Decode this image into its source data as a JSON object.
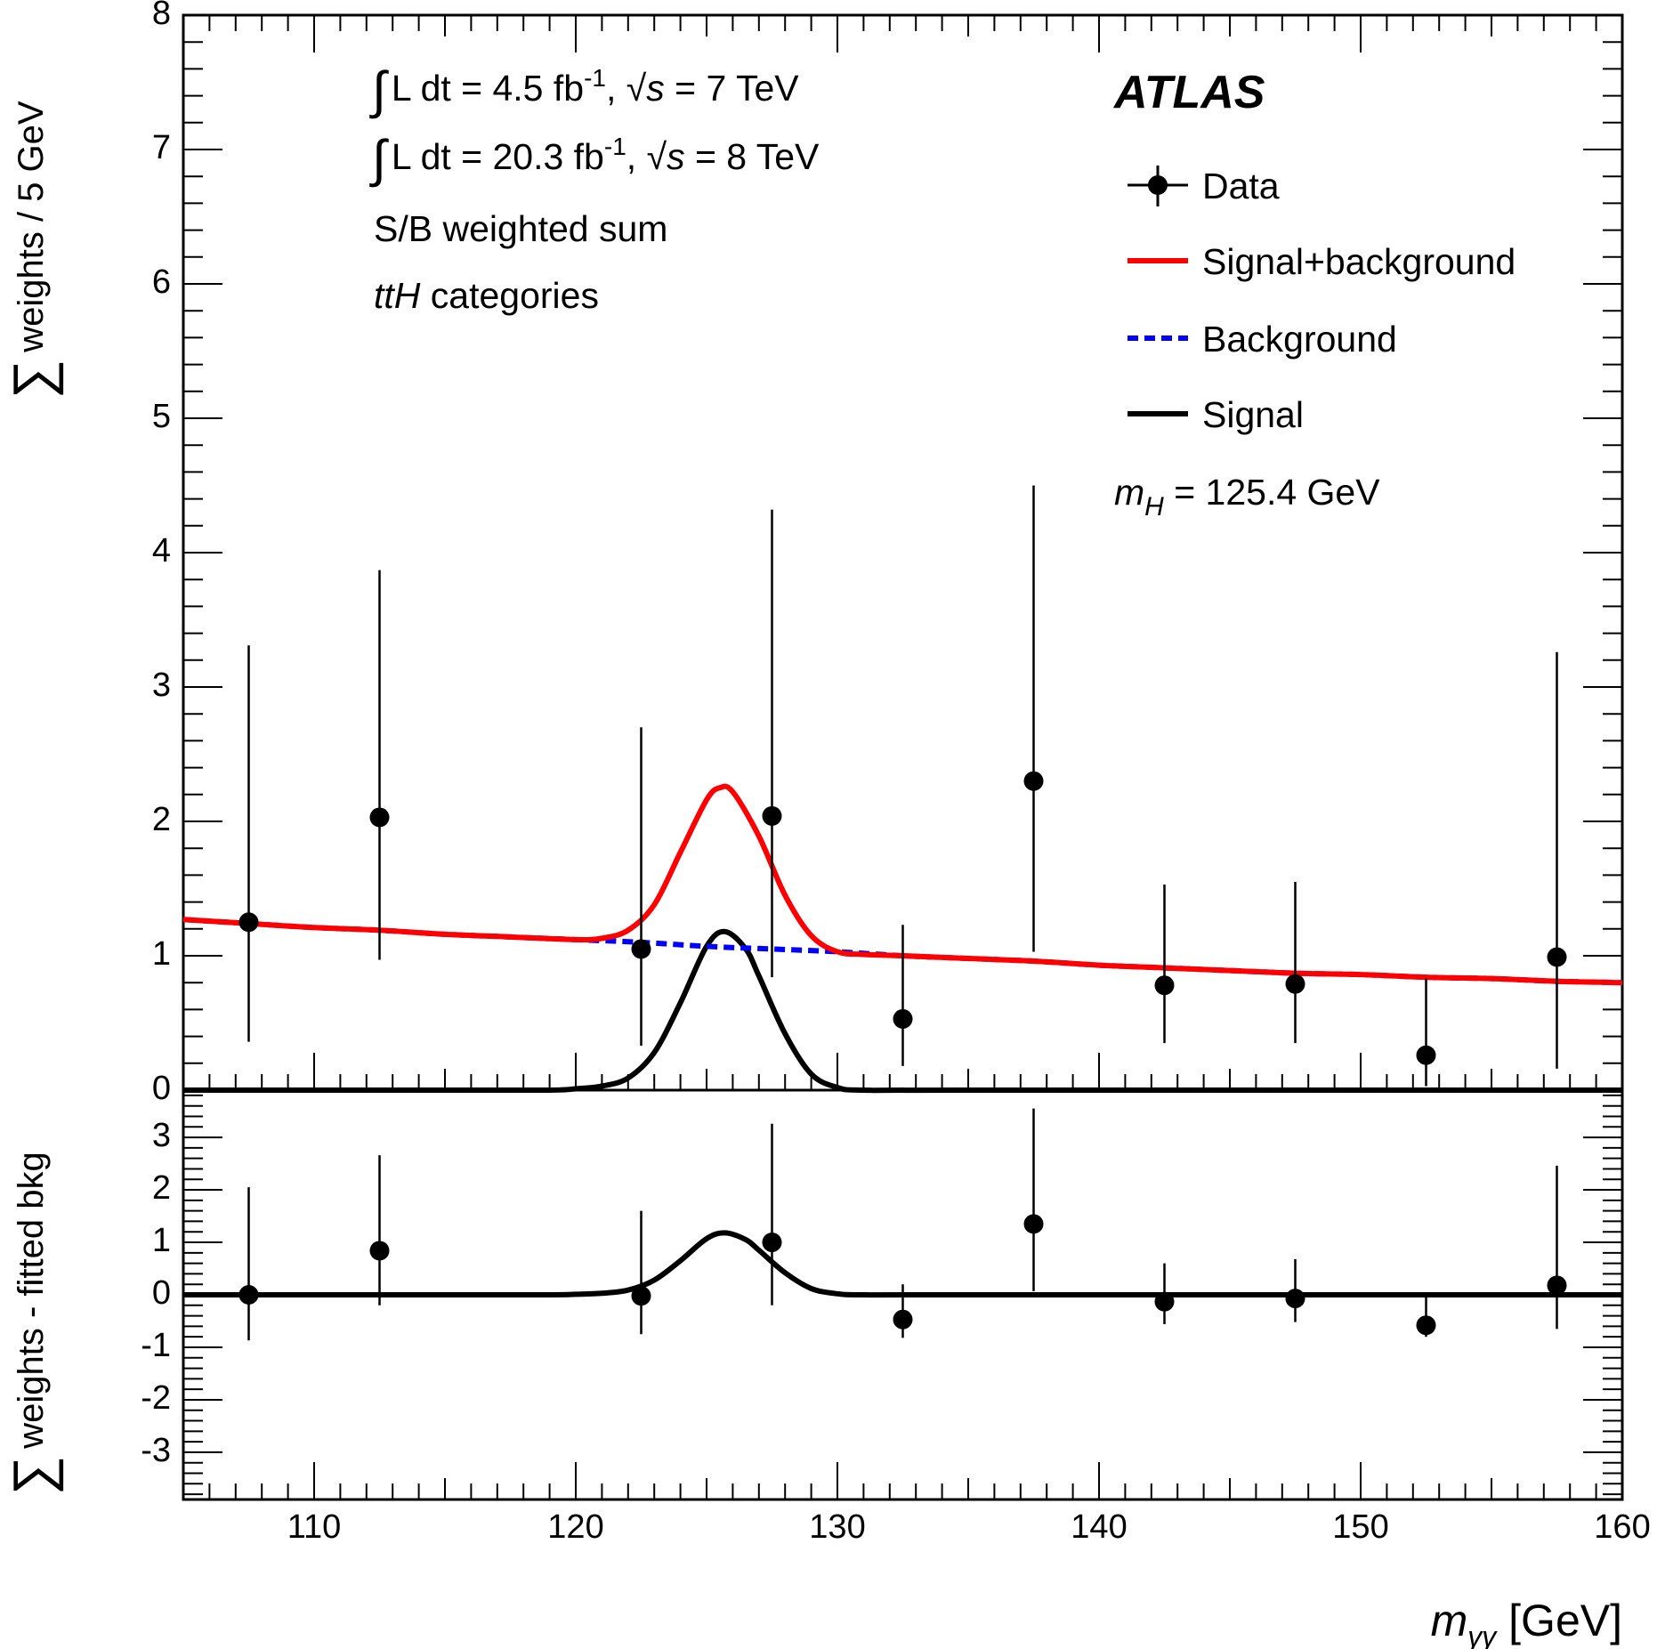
{
  "chart_data": [
    {
      "type": "scatter",
      "panel": "main",
      "ylabel": "weights / 5 GeV",
      "ylabel_symbol": "∑",
      "xlim": [
        105,
        160
      ],
      "ylim": [
        0,
        8
      ],
      "y_ticks": [
        "0",
        "1",
        "2",
        "3",
        "4",
        "5",
        "6",
        "7",
        "8"
      ],
      "annotations": {
        "lumi7": {
          "int": "∫",
          "pre": "L dt = 4.5 fb",
          "sup": "-1",
          "mid": ", √",
          "s": "s",
          "post": " = 7 TeV"
        },
        "lumi8": {
          "int": "∫",
          "pre": "L dt = 20.3 fb",
          "sup": "-1",
          "mid": ", √",
          "s": "s",
          "post": " = 8 TeV"
        },
        "line3": "S/B weighted sum",
        "line4_italic": "ttH",
        "line4_rest": " categories",
        "experiment": "ATLAS",
        "mass_symbol": "m",
        "mass_sub": "H",
        "mass_value": " = 125.4 GeV"
      },
      "legend": [
        {
          "label": "Data",
          "style": "marker"
        },
        {
          "label": "Signal+background",
          "style": "line",
          "color": "#ff0000"
        },
        {
          "label": "Background",
          "style": "dashed",
          "color": "#0000ff"
        },
        {
          "label": "Signal",
          "style": "line",
          "color": "#000000"
        }
      ],
      "legend_position": "top-right",
      "series": [
        {
          "name": "Data",
          "x": [
            107.5,
            112.5,
            122.5,
            127.5,
            132.5,
            137.5,
            142.5,
            147.5,
            152.5,
            157.5
          ],
          "y": [
            1.25,
            2.03,
            1.05,
            2.04,
            0.53,
            2.3,
            0.78,
            0.79,
            0.26,
            0.99
          ],
          "y_low": [
            0.36,
            0.97,
            0.33,
            0.84,
            0.18,
            1.03,
            0.35,
            0.35,
            0.03,
            0.16
          ],
          "y_high": [
            3.31,
            3.87,
            2.7,
            4.32,
            1.23,
            4.5,
            1.53,
            1.55,
            0.83,
            3.26
          ]
        },
        {
          "name": "Signal+background",
          "color": "#ff0000",
          "x": [
            105,
            107.5,
            110,
            112.5,
            115,
            117.5,
            120,
            121,
            122,
            123,
            124,
            125,
            125.5,
            126,
            127,
            128,
            129,
            130,
            131,
            132.5,
            135,
            137.5,
            140,
            142.5,
            145,
            147.5,
            150,
            152.5,
            155,
            157.5,
            160
          ],
          "y": [
            1.27,
            1.24,
            1.21,
            1.19,
            1.16,
            1.14,
            1.12,
            1.13,
            1.19,
            1.38,
            1.77,
            2.16,
            2.25,
            2.22,
            1.89,
            1.45,
            1.15,
            1.03,
            1.01,
            1.0,
            0.98,
            0.96,
            0.93,
            0.91,
            0.89,
            0.87,
            0.86,
            0.84,
            0.83,
            0.81,
            0.8
          ]
        },
        {
          "name": "Background",
          "color": "#0000ff",
          "x": [
            105,
            107.5,
            110,
            112.5,
            115,
            117.5,
            120,
            122.5,
            125,
            127.5,
            130,
            132.5,
            135,
            137.5,
            140,
            142.5,
            145,
            147.5,
            150,
            152.5,
            155,
            157.5,
            160
          ],
          "y": [
            1.27,
            1.24,
            1.21,
            1.19,
            1.16,
            1.14,
            1.12,
            1.1,
            1.07,
            1.05,
            1.03,
            1.0,
            0.98,
            0.96,
            0.93,
            0.91,
            0.89,
            0.87,
            0.86,
            0.84,
            0.83,
            0.81,
            0.8
          ]
        },
        {
          "name": "Signal",
          "color": "#000000",
          "x": [
            105,
            115,
            119,
            120,
            121,
            122,
            123,
            124,
            125,
            125.7,
            126.5,
            127,
            128,
            129,
            130,
            131,
            135,
            160
          ],
          "y": [
            0,
            0,
            0.0,
            0.01,
            0.03,
            0.09,
            0.28,
            0.65,
            1.07,
            1.18,
            1.05,
            0.85,
            0.42,
            0.12,
            0.02,
            0.0,
            0,
            0
          ]
        }
      ]
    },
    {
      "type": "scatter",
      "panel": "residual",
      "ylabel": "weights - fitted bkg",
      "ylabel_symbol": "∑",
      "xlabel_symbol": "m",
      "xlabel_sub": "γγ",
      "xlabel_unit": " [GeV]",
      "xlim": [
        105,
        160
      ],
      "ylim": [
        -3.9,
        3.9
      ],
      "x_ticks": [
        "110",
        "120",
        "130",
        "140",
        "150",
        "160"
      ],
      "y_ticks": [
        "-3",
        "-2",
        "-1",
        "0",
        "1",
        "2",
        "3"
      ],
      "series": [
        {
          "name": "Data",
          "x": [
            107.5,
            112.5,
            122.5,
            127.5,
            132.5,
            137.5,
            142.5,
            147.5,
            152.5,
            157.5
          ],
          "y": [
            0.0,
            0.84,
            -0.02,
            1.0,
            -0.47,
            1.35,
            -0.13,
            -0.07,
            -0.58,
            0.18
          ],
          "y_low": [
            -0.87,
            -0.2,
            -0.75,
            -0.2,
            -0.82,
            0.07,
            -0.56,
            -0.52,
            -0.8,
            -0.65
          ],
          "y_high": [
            2.05,
            2.66,
            1.6,
            3.26,
            0.2,
            3.55,
            0.6,
            0.68,
            0.0,
            2.46
          ]
        },
        {
          "name": "Signal",
          "color": "#000000",
          "x": [
            105,
            115,
            119,
            120,
            121,
            122,
            123,
            124,
            125,
            125.7,
            126.5,
            127,
            128,
            129,
            130,
            131,
            135,
            160
          ],
          "y": [
            0,
            0,
            0.0,
            0.01,
            0.03,
            0.09,
            0.28,
            0.65,
            1.07,
            1.18,
            1.05,
            0.85,
            0.42,
            0.12,
            0.02,
            0.0,
            0,
            0
          ]
        }
      ]
    }
  ]
}
